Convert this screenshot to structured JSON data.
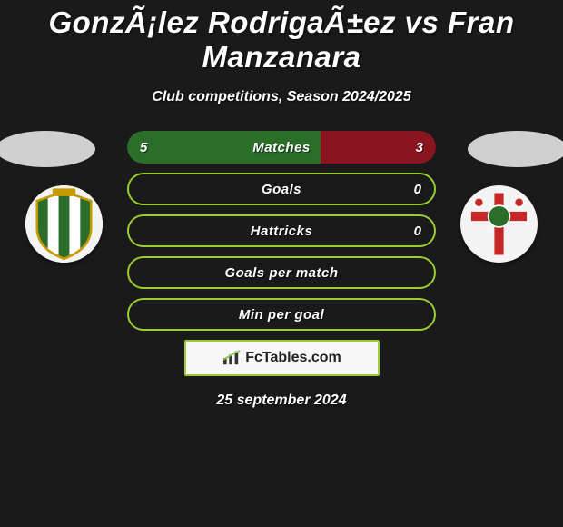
{
  "title": "GonzÃ¡lez RodrigaÃ±ez vs Fran Manzanara",
  "subtitle": "Club competitions, Season 2024/2025",
  "footer_brand": "FcTables.com",
  "footer_date": "25 september 2024",
  "colors": {
    "left_fill": "#2a6e2a",
    "right_fill": "#8a1520",
    "lime_border": "#9acd32",
    "bg": "#1a1a1a",
    "ellipse": "#d0d0d0",
    "crest_bg": "#f4f4f4"
  },
  "crest_left": {
    "stripes": [
      "#2a6e2a",
      "#ffffff",
      "#2a6e2a",
      "#ffffff",
      "#2a6e2a"
    ],
    "accent": "#c79a00"
  },
  "crest_right": {
    "cross": "#c62828",
    "center": "#2a6e2a",
    "bg": "#ffffff"
  },
  "bars": [
    {
      "label": "Matches",
      "left_val": "5",
      "right_val": "3",
      "variant": "split",
      "left_pct": 62.5,
      "right_pct": 37.5
    },
    {
      "label": "Goals",
      "left_val": "",
      "right_val": "0",
      "variant": "lime"
    },
    {
      "label": "Hattricks",
      "left_val": "",
      "right_val": "0",
      "variant": "lime"
    },
    {
      "label": "Goals per match",
      "left_val": "",
      "right_val": "",
      "variant": "lime"
    },
    {
      "label": "Min per goal",
      "left_val": "",
      "right_val": "",
      "variant": "lime"
    }
  ]
}
